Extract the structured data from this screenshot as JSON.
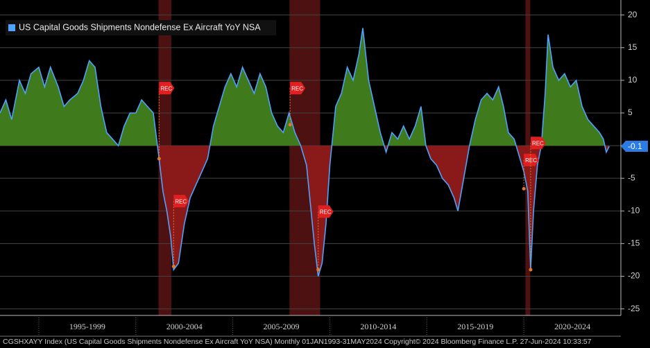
{
  "chart_data": {
    "type": "line",
    "legend": "US Capital Goods Shipments Nondefense Ex Aircraft YoY NSA",
    "footer": "CGSHXAYY Index (US Capital Goods Shipments Nondefense Ex Aircraft YoY NSA)  Monthly 01JAN1993-31MAY2024  Copyright© 2024 Bloomberg Finance L.P.     27-Jun-2024 10:33:57",
    "color": "#4da3ff",
    "positive_fill": "#3f7a1c",
    "negative_fill": "#8a1a1a",
    "recession_color": "#5a1414",
    "x": [
      1993.0,
      1993.3,
      1993.6,
      1994.0,
      1994.3,
      1994.6,
      1995.0,
      1995.3,
      1995.6,
      1996.0,
      1996.3,
      1996.6,
      1997.0,
      1997.3,
      1997.6,
      1997.9,
      1998.2,
      1998.5,
      1998.8,
      1999.1,
      1999.4,
      1999.7,
      2000.0,
      2000.3,
      2000.6,
      2000.9,
      2001.2,
      2001.4,
      2001.6,
      2001.8,
      2001.95,
      2002.2,
      2002.5,
      2002.8,
      2003.1,
      2003.4,
      2003.7,
      2004.0,
      2004.3,
      2004.6,
      2004.9,
      2005.2,
      2005.5,
      2005.8,
      2006.1,
      2006.4,
      2006.7,
      2007.0,
      2007.3,
      2007.6,
      2007.9,
      2008.2,
      2008.5,
      2008.8,
      2009.0,
      2009.2,
      2009.4,
      2009.6,
      2009.8,
      2010.0,
      2010.3,
      2010.6,
      2010.9,
      2011.2,
      2011.5,
      2011.7,
      2012.0,
      2012.3,
      2012.6,
      2012.9,
      2013.2,
      2013.5,
      2013.8,
      2014.1,
      2014.4,
      2014.7,
      2014.95,
      2015.2,
      2015.5,
      2015.8,
      2016.1,
      2016.4,
      2016.6,
      2016.9,
      2017.2,
      2017.5,
      2017.8,
      2018.1,
      2018.4,
      2018.7,
      2018.95,
      2019.2,
      2019.5,
      2019.8,
      2020.0,
      2020.2,
      2020.35,
      2020.5,
      2020.7,
      2020.9,
      2021.1,
      2021.25,
      2021.5,
      2021.8,
      2022.1,
      2022.4,
      2022.7,
      2023.0,
      2023.3,
      2023.6,
      2023.9,
      2024.1,
      2024.25,
      2024.4
    ],
    "values": [
      5,
      7,
      4,
      10,
      8,
      11,
      12,
      9,
      12,
      9,
      6,
      7,
      8,
      10,
      13,
      12,
      6,
      2,
      1,
      0,
      3,
      5,
      5,
      7,
      6,
      5,
      -2,
      -7,
      -10,
      -14,
      -19,
      -18,
      -12,
      -8,
      -6,
      -4,
      -2,
      3,
      6,
      9,
      11,
      9,
      12,
      10,
      8,
      11,
      9,
      5,
      3,
      2,
      5,
      2,
      0,
      -3,
      -9,
      -15,
      -20,
      -18,
      -12,
      -3,
      6,
      8,
      12,
      10,
      14,
      18,
      10,
      6,
      2,
      -1,
      2,
      1,
      3,
      1,
      3,
      6,
      0,
      -2,
      -3,
      -5,
      -6,
      -8,
      -10,
      -5,
      0,
      4,
      7,
      8,
      7,
      9,
      6,
      2,
      1,
      -2,
      -4,
      -7,
      -19,
      -10,
      -3,
      0,
      8,
      17,
      12,
      10,
      11,
      9,
      10,
      6,
      4,
      3,
      2,
      1,
      -1,
      -0.1
    ],
    "last_label": {
      "value": -0.1,
      "label": "-0.1"
    },
    "xlim": [
      1993.0,
      2025.0
    ],
    "xticks": [
      {
        "value": 1995,
        "label": "1995-1999"
      },
      {
        "value": 2000,
        "label": "2000-2004"
      },
      {
        "value": 2005,
        "label": "2005-2009"
      },
      {
        "value": 2010,
        "label": "2010-2014"
      },
      {
        "value": 2015,
        "label": "2015-2019"
      },
      {
        "value": 2020,
        "label": "2020-2024"
      }
    ],
    "ylim": [
      -26,
      22.3
    ],
    "yticks": [
      20,
      15,
      10,
      5,
      0,
      -5,
      -10,
      -15,
      -20,
      -25
    ],
    "grid": true,
    "recessions": [
      [
        2001.17,
        2001.83
      ],
      [
        2007.92,
        2009.5
      ],
      [
        2020.08,
        2020.33
      ]
    ],
    "rec_markers": [
      {
        "x": 2001.2,
        "y": 8.8,
        "point": -2,
        "label": "REC"
      },
      {
        "x": 2001.95,
        "y": -8.5,
        "point": -18.5,
        "label": "REC"
      },
      {
        "x": 2007.95,
        "y": 8.8,
        "point": 3.2,
        "label": "REC"
      },
      {
        "x": 2009.4,
        "y": -10.1,
        "point": -19,
        "label": "REC"
      },
      {
        "x": 2020.0,
        "y": -2.2,
        "point": -6.6,
        "label": "REC"
      },
      {
        "x": 2020.35,
        "y": 0.4,
        "point": -19,
        "label": "REC"
      }
    ]
  }
}
